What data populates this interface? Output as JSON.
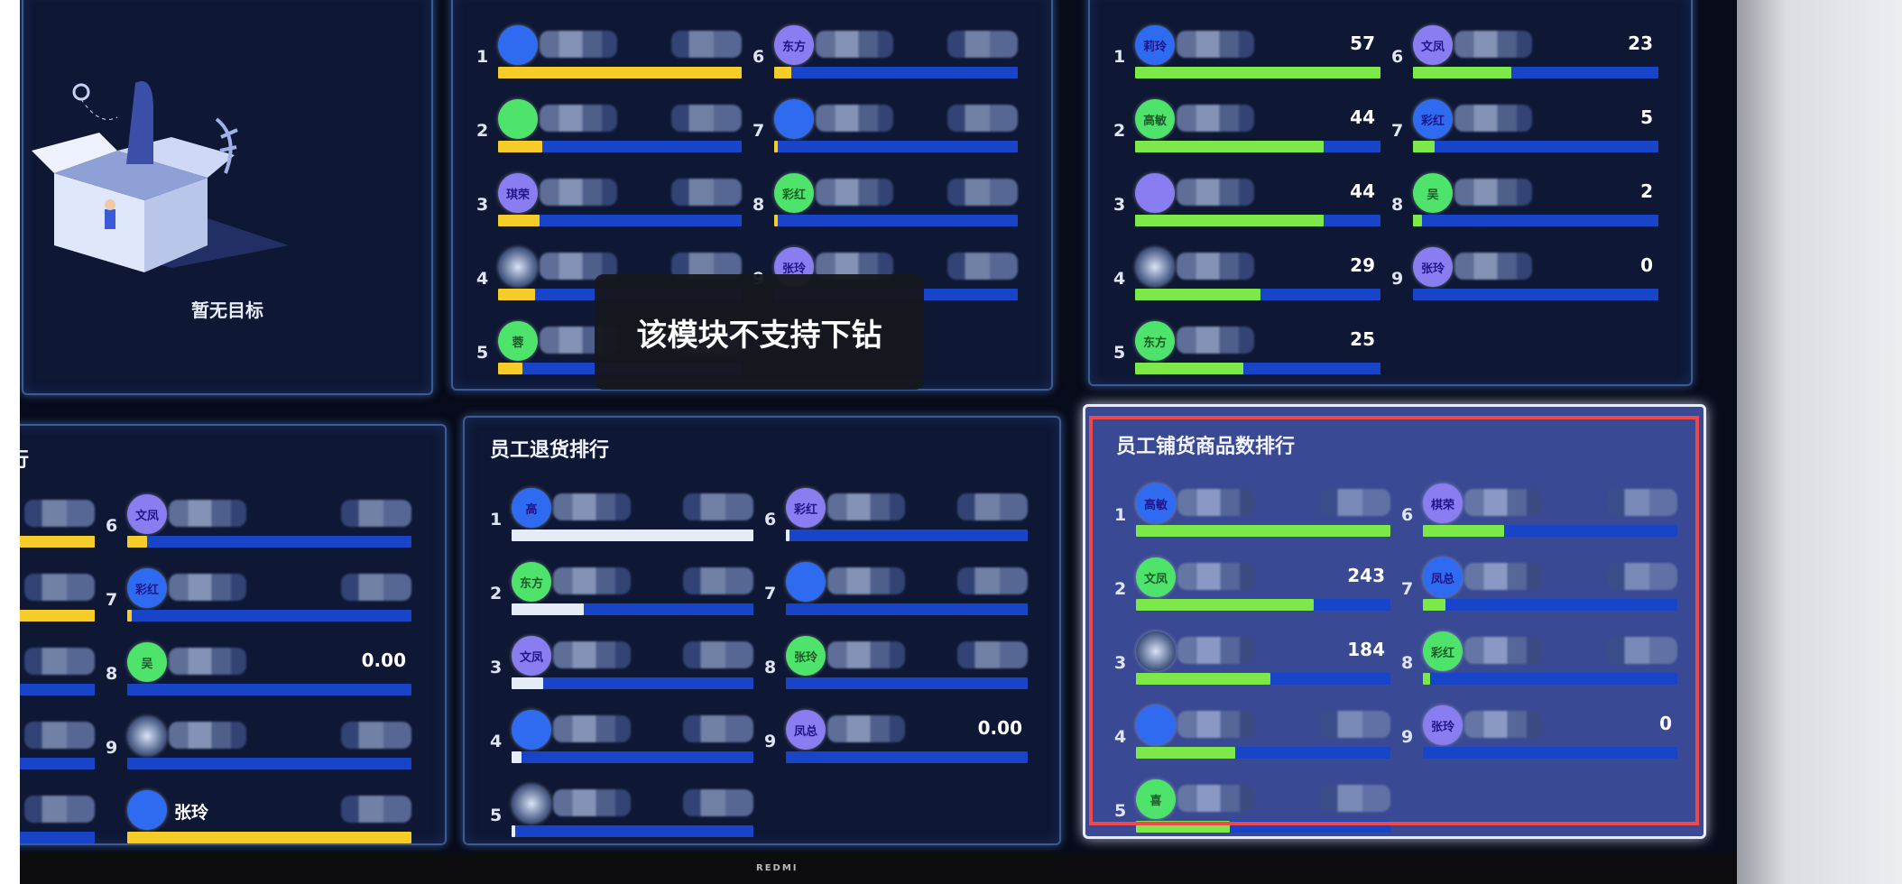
{
  "toast": {
    "message": "该模块不支持下钻"
  },
  "bezel": {
    "brand": "REDMI"
  },
  "colors": {
    "avatar_blue": "#2f6bf0",
    "avatar_green": "#4ee36a",
    "avatar_purple": "#8a7df2",
    "avatar_image": "#8a9ab8",
    "bar_track": "#1844c8",
    "highlight": "#f0484a"
  },
  "panels": [
    {
      "title": "",
      "empty_text": "暂无目标",
      "rows": []
    },
    {
      "title": "",
      "bar_color": "#f5cc2a",
      "rows": [
        {
          "rank": "1",
          "avatar": "",
          "color": "blue",
          "value": "",
          "fill": 1.0
        },
        {
          "rank": "2",
          "avatar": "",
          "color": "green",
          "value": "",
          "fill": 0.18
        },
        {
          "rank": "3",
          "avatar": "琪荣",
          "color": "purple",
          "value": "",
          "fill": 0.17
        },
        {
          "rank": "4",
          "avatar": "",
          "color": "image",
          "value": "",
          "fill": 0.15
        },
        {
          "rank": "5",
          "avatar": "蓉",
          "color": "green",
          "value": "",
          "fill": 0.1
        },
        {
          "rank": "6",
          "avatar": "东方",
          "color": "purple",
          "value": "",
          "fill": 0.07
        },
        {
          "rank": "7",
          "avatar": "",
          "color": "blue",
          "value": "",
          "fill": 0.01
        },
        {
          "rank": "8",
          "avatar": "彩红",
          "color": "green",
          "value": "",
          "fill": 0.01
        },
        {
          "rank": "9",
          "avatar": "张玲",
          "color": "purple",
          "value": "",
          "fill": 0.0
        }
      ]
    },
    {
      "title": "",
      "bar_color": "#7de84a",
      "rows": [
        {
          "rank": "1",
          "avatar": "莉玲",
          "color": "blue",
          "value": "57",
          "fill": 1.0
        },
        {
          "rank": "2",
          "avatar": "高敏",
          "color": "green",
          "value": "44",
          "fill": 0.77
        },
        {
          "rank": "3",
          "avatar": "",
          "color": "purple",
          "value": "44",
          "fill": 0.77
        },
        {
          "rank": "4",
          "avatar": "",
          "color": "image",
          "value": "29",
          "fill": 0.51
        },
        {
          "rank": "5",
          "avatar": "东方",
          "color": "green",
          "value": "25",
          "fill": 0.44
        },
        {
          "rank": "6",
          "avatar": "文凤",
          "color": "purple",
          "value": "23",
          "fill": 0.4
        },
        {
          "rank": "7",
          "avatar": "彩红",
          "color": "blue",
          "value": "5",
          "fill": 0.09
        },
        {
          "rank": "8",
          "avatar": "吴",
          "color": "green",
          "value": "2",
          "fill": 0.035
        },
        {
          "rank": "9",
          "avatar": "张玲",
          "color": "purple",
          "value": "0",
          "fill": 0.0
        }
      ]
    },
    {
      "title": "行",
      "bar_color": "#f5cc2a",
      "rows": [
        {
          "rank": "",
          "avatar": "",
          "color": "none",
          "value": "",
          "fill": 1.0
        },
        {
          "rank": "",
          "avatar": "",
          "color": "none",
          "value": "",
          "fill": 1.0
        },
        {
          "rank": "",
          "avatar": "",
          "color": "none",
          "value": "",
          "fill": 0.6
        },
        {
          "rank": "",
          "avatar": "",
          "color": "none",
          "value": "",
          "fill": 0.0
        },
        {
          "rank": "",
          "avatar": "",
          "color": "none",
          "value": "",
          "fill": 0.0
        },
        {
          "rank": "6",
          "avatar": "文凤",
          "color": "purple",
          "value": "",
          "fill": 0.07
        },
        {
          "rank": "7",
          "avatar": "彩红",
          "color": "blue",
          "value": "",
          "fill": 0.01
        },
        {
          "rank": "8",
          "avatar": "吴",
          "color": "green",
          "value": "0.00",
          "fill": 0.0
        },
        {
          "rank": "9",
          "avatar": "",
          "color": "image",
          "value": "",
          "fill": 0.0
        },
        {
          "rank": "",
          "avatar": "",
          "color": "blue",
          "value": "",
          "name": "张玲",
          "fill": 1.0
        }
      ]
    },
    {
      "title": "员工退货排行",
      "bar_color": "#e4ecf6",
      "rows": [
        {
          "rank": "1",
          "avatar": "高",
          "color": "blue",
          "value": "",
          "fill": 1.0
        },
        {
          "rank": "2",
          "avatar": "东方",
          "color": "green",
          "value": "",
          "fill": 0.3
        },
        {
          "rank": "3",
          "avatar": "文凤",
          "color": "purple",
          "value": "",
          "fill": 0.13
        },
        {
          "rank": "4",
          "avatar": "",
          "color": "blue",
          "value": "",
          "fill": 0.04
        },
        {
          "rank": "5",
          "avatar": "",
          "color": "image",
          "value": "",
          "fill": 0.01
        },
        {
          "rank": "6",
          "avatar": "彩红",
          "color": "purple",
          "value": "",
          "fill": 0.01
        },
        {
          "rank": "7",
          "avatar": "",
          "color": "blue",
          "value": "",
          "fill": 0.0
        },
        {
          "rank": "8",
          "avatar": "张玲",
          "color": "green",
          "value": "",
          "fill": 0.0
        },
        {
          "rank": "9",
          "avatar": "凤总",
          "color": "purple",
          "value": "0.00",
          "fill": 0.0
        }
      ]
    },
    {
      "title": "员工铺货商品数排行",
      "bar_color": "#7de84a",
      "rows": [
        {
          "rank": "1",
          "avatar": "高敏",
          "color": "blue",
          "value": "",
          "fill": 1.0
        },
        {
          "rank": "2",
          "avatar": "文凤",
          "color": "green",
          "value": "243",
          "fill": 0.7
        },
        {
          "rank": "3",
          "avatar": "",
          "color": "image",
          "value": "184",
          "fill": 0.53
        },
        {
          "rank": "4",
          "avatar": "",
          "color": "blue",
          "value": "",
          "fill": 0.39
        },
        {
          "rank": "5",
          "avatar": "喜",
          "color": "green",
          "value": "",
          "fill": 0.37
        },
        {
          "rank": "6",
          "avatar": "棋荣",
          "color": "purple",
          "value": "",
          "fill": 0.32
        },
        {
          "rank": "7",
          "avatar": "凤总",
          "color": "blue",
          "value": "",
          "fill": 0.09
        },
        {
          "rank": "8",
          "avatar": "彩红",
          "color": "green",
          "value": "",
          "fill": 0.03
        },
        {
          "rank": "9",
          "avatar": "张玲",
          "color": "purple",
          "value": "0",
          "fill": 0.0
        }
      ]
    }
  ]
}
